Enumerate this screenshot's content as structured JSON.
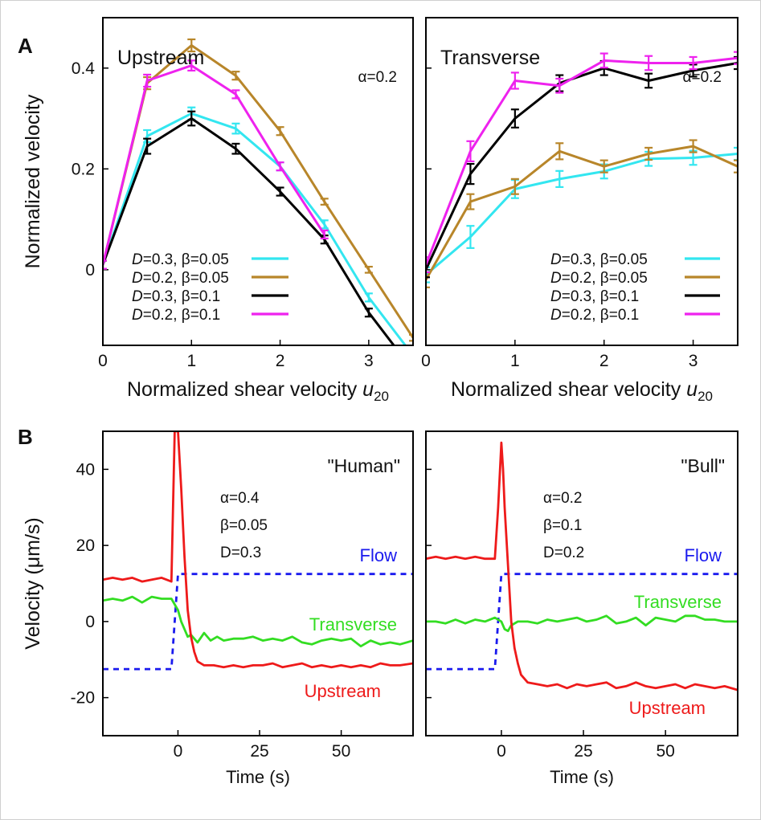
{
  "figure": {
    "panel_labels": [
      "A",
      "B"
    ]
  },
  "chart_data": [
    {
      "type": "line",
      "panel": "A",
      "title": "Upstream",
      "annotation": "α=0.2",
      "xlabel": "Normalized shear velocity ",
      "xlabel_var": "u",
      "xlabel_sub": "20",
      "ylabel": "Normalized velocity",
      "xlim": [
        0,
        3.5
      ],
      "ylim": [
        -0.15,
        0.5
      ],
      "xticks": [
        0,
        1,
        2,
        3
      ],
      "yticks": [
        0,
        0.2,
        0.4
      ],
      "ytick_labels": [
        "0",
        "0.2",
        "0.4"
      ],
      "grid": false,
      "legend_position": "bottom-left",
      "error_bars": true,
      "series": [
        {
          "legend_var": "D",
          "legend_rest": "=0.3, β=0.05",
          "color": "#33e6f0",
          "x": [
            0,
            0.5,
            1,
            1.5,
            2,
            2.5,
            3,
            3.5
          ],
          "y": [
            0.01,
            0.265,
            0.31,
            0.28,
            0.205,
            0.09,
            -0.055,
            -0.17
          ],
          "err": [
            0.008,
            0.012,
            0.012,
            0.01,
            0.008,
            0.008,
            0.008,
            0.008
          ]
        },
        {
          "legend_var": "D",
          "legend_rest": "=0.2, β=0.05",
          "color": "#b8862a",
          "x": [
            0,
            0.5,
            1,
            1.5,
            2,
            2.5,
            3,
            3.5
          ],
          "y": [
            0.01,
            0.37,
            0.445,
            0.385,
            0.275,
            0.135,
            0.0,
            -0.135
          ],
          "err": [
            0.008,
            0.012,
            0.012,
            0.008,
            0.008,
            0.006,
            0.006,
            0.006
          ]
        },
        {
          "legend_var": "D",
          "legend_rest": "=0.3, β=0.1",
          "color": "#000000",
          "x": [
            0,
            0.5,
            1,
            1.5,
            2,
            2.5,
            3,
            3.5
          ],
          "y": [
            0.01,
            0.245,
            0.3,
            0.24,
            0.155,
            0.06,
            -0.085,
            -0.2
          ],
          "err": [
            0.008,
            0.015,
            0.014,
            0.01,
            0.008,
            0.008,
            0.008,
            0.008
          ]
        },
        {
          "legend_var": "D",
          "legend_rest": "=0.2, β=0.1",
          "color": "#ee22ee",
          "x": [
            0,
            0.5,
            1,
            1.5,
            2,
            2.5
          ],
          "y": [
            0.01,
            0.375,
            0.405,
            0.348,
            0.205,
            0.07
          ],
          "err": [
            0.008,
            0.012,
            0.01,
            0.008,
            0.008,
            0.008
          ]
        }
      ]
    },
    {
      "type": "line",
      "panel": "A",
      "title": "Transverse",
      "annotation": "α=0.2",
      "xlabel": "Normalized shear velocity ",
      "xlabel_var": "u",
      "xlabel_sub": "20",
      "xlim": [
        0,
        3.5
      ],
      "ylim": [
        -0.15,
        0.5
      ],
      "xticks": [
        0,
        1,
        2,
        3
      ],
      "yticks": [
        0,
        0.2,
        0.4
      ],
      "grid": false,
      "legend_position": "bottom-right",
      "error_bars": true,
      "series": [
        {
          "legend_var": "D",
          "legend_rest": "=0.3, β=0.05",
          "color": "#33e6f0",
          "x": [
            0,
            0.5,
            1,
            1.5,
            2,
            2.5,
            3,
            3.5
          ],
          "y": [
            -0.01,
            0.065,
            0.16,
            0.18,
            0.195,
            0.22,
            0.222,
            0.23
          ],
          "err": [
            0.015,
            0.022,
            0.018,
            0.016,
            0.014,
            0.014,
            0.014,
            0.012
          ]
        },
        {
          "legend_var": "D",
          "legend_rest": "=0.2, β=0.05",
          "color": "#b8862a",
          "x": [
            0,
            0.5,
            1,
            1.5,
            2,
            2.5,
            3,
            3.5
          ],
          "y": [
            -0.02,
            0.135,
            0.165,
            0.235,
            0.205,
            0.23,
            0.245,
            0.205
          ],
          "err": [
            0.015,
            0.015,
            0.015,
            0.016,
            0.012,
            0.012,
            0.012,
            0.012
          ]
        },
        {
          "legend_var": "D",
          "legend_rest": "=0.3, β=0.1",
          "color": "#000000",
          "x": [
            0,
            0.5,
            1,
            1.5,
            2,
            2.5,
            3,
            3.5
          ],
          "y": [
            0.0,
            0.19,
            0.3,
            0.37,
            0.4,
            0.375,
            0.395,
            0.41
          ],
          "err": [
            0.015,
            0.02,
            0.018,
            0.016,
            0.014,
            0.014,
            0.012,
            0.012
          ]
        },
        {
          "legend_var": "D",
          "legend_rest": "=0.2, β=0.1",
          "color": "#ee22ee",
          "x": [
            0,
            0.5,
            1,
            1.5,
            2,
            2.5,
            3,
            3.5
          ],
          "y": [
            0.01,
            0.235,
            0.375,
            0.365,
            0.415,
            0.41,
            0.41,
            0.42
          ],
          "err": [
            0.015,
            0.02,
            0.016,
            0.014,
            0.014,
            0.014,
            0.012,
            0.012
          ]
        }
      ]
    },
    {
      "type": "line",
      "panel": "B",
      "title": "\"Human\"",
      "params": [
        "α=0.4",
        "β=0.05",
        "D=0.3"
      ],
      "xlabel": "Time (s)",
      "ylabel": "Velocity (μm/s)",
      "xlim": [
        -23,
        72
      ],
      "ylim": [
        -30,
        50
      ],
      "xticks": [
        0,
        25,
        50
      ],
      "yticks": [
        -20,
        0,
        20,
        40
      ],
      "grid": false,
      "series": [
        {
          "name": "Flow",
          "color": "#1a1aee",
          "dashed": true,
          "x": [
            -23,
            -2,
            0,
            72
          ],
          "y": [
            -12.5,
            -12.5,
            12.5,
            12.5
          ]
        },
        {
          "name": "Transverse",
          "color": "#33dd22",
          "x": [
            -23,
            -20,
            -17,
            -14,
            -11,
            -8,
            -5,
            -2,
            0,
            1,
            2,
            3,
            4,
            6,
            8,
            10,
            12,
            14,
            17,
            20,
            23,
            26,
            29,
            32,
            35,
            38,
            41,
            44,
            47,
            50,
            53,
            56,
            59,
            62,
            65,
            68,
            72
          ],
          "y": [
            5.5,
            6,
            5.5,
            6.5,
            5,
            6.5,
            6,
            6,
            3,
            0,
            -2,
            -4,
            -3.5,
            -5.5,
            -3,
            -5,
            -4,
            -5,
            -4.5,
            -4.5,
            -4,
            -5,
            -4.5,
            -5,
            -4,
            -5.5,
            -6,
            -5,
            -4.5,
            -5,
            -4.5,
            -6.5,
            -5,
            -6,
            -5.5,
            -6,
            -5
          ]
        },
        {
          "name": "Upstream",
          "color": "#ee1a1a",
          "x": [
            -23,
            -20,
            -17,
            -14,
            -11,
            -8,
            -5,
            -2,
            -1,
            0,
            1,
            2,
            3,
            4,
            5,
            6,
            8,
            11,
            14,
            17,
            20,
            23,
            26,
            29,
            32,
            35,
            38,
            41,
            44,
            47,
            50,
            53,
            56,
            59,
            62,
            65,
            68,
            72
          ],
          "y": [
            11,
            11.5,
            11,
            11.5,
            10.5,
            11,
            11.5,
            10.5,
            50,
            50,
            35,
            17,
            3,
            -4,
            -8,
            -10.5,
            -11.5,
            -11.5,
            -12,
            -11.5,
            -12,
            -11.5,
            -11.5,
            -11,
            -12,
            -11.5,
            -11,
            -12,
            -11.5,
            -12,
            -11.5,
            -12,
            -11.5,
            -12,
            -11,
            -11.5,
            -11.5,
            -11
          ]
        }
      ]
    },
    {
      "type": "line",
      "panel": "B",
      "title": "\"Bull\"",
      "params": [
        "α=0.2",
        "β=0.1",
        "D=0.2"
      ],
      "xlabel": "Time (s)",
      "xlim": [
        -23,
        72
      ],
      "ylim": [
        -30,
        50
      ],
      "xticks": [
        0,
        25,
        50
      ],
      "yticks": [
        -20,
        0,
        20,
        40
      ],
      "grid": false,
      "series": [
        {
          "name": "Flow",
          "color": "#1a1aee",
          "dashed": true,
          "x": [
            -23,
            -2,
            0,
            72
          ],
          "y": [
            -12.5,
            -12.5,
            12.5,
            12.5
          ]
        },
        {
          "name": "Transverse",
          "color": "#33dd22",
          "x": [
            -23,
            -20,
            -17,
            -14,
            -11,
            -8,
            -5,
            -2,
            0,
            1,
            2,
            3,
            5,
            8,
            11,
            14,
            17,
            20,
            23,
            26,
            29,
            32,
            35,
            38,
            41,
            44,
            47,
            50,
            53,
            56,
            59,
            62,
            65,
            68,
            72
          ],
          "y": [
            0,
            0,
            -0.5,
            0.5,
            -0.5,
            0.5,
            0,
            1,
            0,
            -2,
            -2.5,
            -1,
            0,
            0,
            -0.5,
            0.5,
            0,
            0.5,
            1,
            0,
            0.5,
            1.5,
            -0.5,
            0,
            1,
            -1,
            1,
            0.5,
            0,
            1.5,
            1.5,
            0.5,
            0.5,
            0,
            0
          ]
        },
        {
          "name": "Upstream",
          "color": "#ee1a1a",
          "x": [
            -23,
            -20,
            -17,
            -14,
            -11,
            -8,
            -5,
            -2,
            -1,
            0,
            0.5,
            1,
            2,
            3,
            4,
            5,
            6,
            8,
            11,
            14,
            17,
            20,
            23,
            26,
            29,
            32,
            35,
            38,
            41,
            44,
            47,
            50,
            53,
            56,
            59,
            62,
            65,
            68,
            72
          ],
          "y": [
            16.5,
            17,
            16.5,
            17,
            16.5,
            17,
            16.5,
            16.5,
            30,
            47,
            40,
            30,
            15,
            0,
            -7,
            -11,
            -14,
            -16,
            -16.5,
            -17,
            -16.5,
            -17.5,
            -16.5,
            -17,
            -16.5,
            -16,
            -17.5,
            -17,
            -16,
            -17,
            -17.5,
            -17,
            -16.5,
            -17.5,
            -16.5,
            -17,
            -17.5,
            -17,
            -18
          ]
        }
      ]
    }
  ]
}
